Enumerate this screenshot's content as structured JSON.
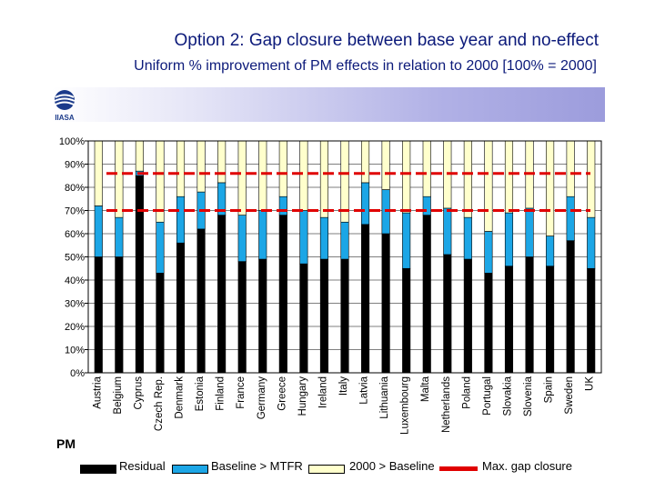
{
  "header": {
    "title": "Option 2: Gap closure between base year and no-effect",
    "subtitle": "Uniform % improvement of PM effects in relation to 2000 [100% = 2000]"
  },
  "logo_text": "IIASA",
  "pollutant_label": "PM",
  "chart_data": {
    "type": "bar",
    "stacked": true,
    "ylim": [
      0,
      100
    ],
    "yticks": [
      "0%",
      "10%",
      "20%",
      "30%",
      "40%",
      "50%",
      "60%",
      "70%",
      "80%",
      "90%",
      "100%"
    ],
    "categories": [
      "Austria",
      "Belgium",
      "Cyprus",
      "Czech Rep.",
      "Denmark",
      "Estonia",
      "Finland",
      "France",
      "Germany",
      "Greece",
      "Hungary",
      "Ireland",
      "Italy",
      "Latvia",
      "Lithuania",
      "Luxembourg",
      "Malta",
      "Netherlands",
      "Poland",
      "Portugal",
      "Slovakia",
      "Slovenia",
      "Spain",
      "Sweden",
      "UK"
    ],
    "series": [
      {
        "name": "Residual",
        "color": "#000000",
        "values": [
          50,
          50,
          85,
          43,
          56,
          62,
          68,
          48,
          49,
          68,
          47,
          49,
          49,
          64,
          60,
          45,
          68,
          51,
          49,
          43,
          46,
          50,
          46,
          57,
          45
        ]
      },
      {
        "name": "Baseline > MTFR",
        "color": "#1ca6e6",
        "values": [
          22,
          17,
          2,
          22,
          20,
          16,
          14,
          20,
          21,
          8,
          23,
          18,
          16,
          18,
          19,
          24,
          8,
          20,
          18,
          18,
          23,
          21,
          13,
          19,
          22
        ]
      },
      {
        "name": "2000 > Baseline",
        "color": "#ffffcc",
        "values": [
          28,
          33,
          13,
          35,
          24,
          22,
          18,
          32,
          30,
          24,
          30,
          33,
          35,
          18,
          21,
          31,
          24,
          29,
          33,
          39,
          31,
          29,
          41,
          24,
          33
        ]
      }
    ],
    "reference_lines": [
      {
        "name": "Max. gap closure",
        "color": "#e00000",
        "values": [
          86,
          70
        ]
      }
    ],
    "grid": true,
    "legend_position": "bottom"
  }
}
